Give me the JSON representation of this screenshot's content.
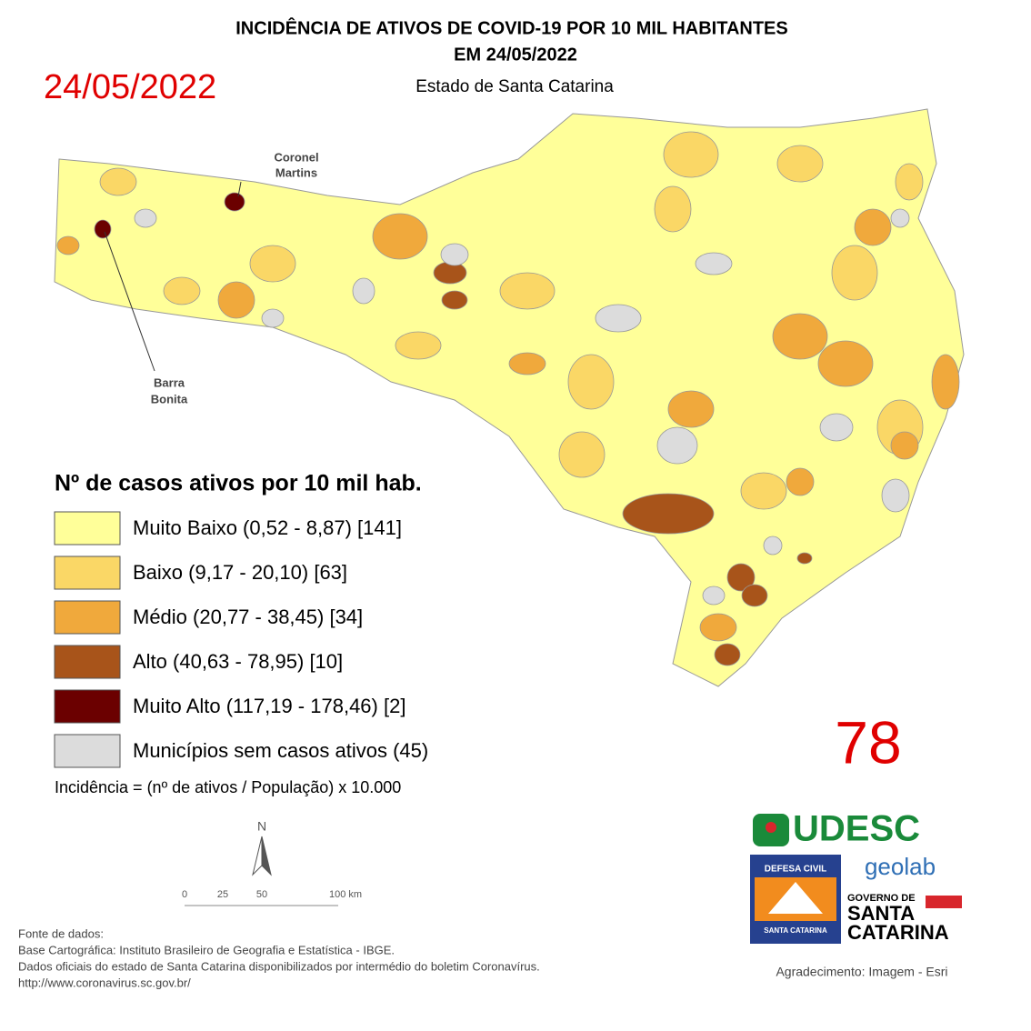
{
  "header": {
    "title_lines": [
      "INCIDÊNCIA DE ATIVOS DE COVID-19 POR 10 MIL HABITANTES",
      "EM 24/05/2022"
    ],
    "date_stamp": "24/05/2022",
    "subtitle": "Estado de Santa Catarina"
  },
  "map": {
    "annotations": [
      {
        "lines": [
          "Coronel",
          "Martins"
        ]
      },
      {
        "lines": [
          "Barra",
          "Bonita"
        ]
      }
    ]
  },
  "legend": {
    "title": "Nº de casos ativos por 10 mil hab.",
    "items": [
      {
        "label": "Muito Baixo (0,52 - 8,87) [141]",
        "color": "#ffff99"
      },
      {
        "label": "Baixo (9,17 - 20,10) [63]",
        "color": "#fad766"
      },
      {
        "label": "Médio (20,77 - 38,45) [34]",
        "color": "#f0a93c"
      },
      {
        "label": "Alto (40,63 - 78,95) [10]",
        "color": "#a8541a"
      },
      {
        "label": "Muito Alto (117,19 - 178,46) [2]",
        "color": "#6b0000"
      },
      {
        "label": "Municípios sem casos ativos (45)",
        "color": "#dcdcdc"
      }
    ],
    "formula": "Incidência = (nº de ativos / População) x 10.000"
  },
  "bulletin_number": "78",
  "north_arrow": "N",
  "scale_bar": {
    "labels": [
      "0",
      "25",
      "50",
      "100 km"
    ]
  },
  "sources": [
    "Fonte de dados:",
    "Base Cartográfica: Instituto Brasileiro de Geografia e Estatística - IBGE.",
    "Dados oficiais do estado de Santa Catarina disponibilizados por intermédio do boletim Coronavírus.",
    "http://www.coronavirus.sc.gov.br/"
  ],
  "logos": {
    "udesc": "UDESC",
    "defesa_civil": "DEFESA CIVIL",
    "defesa_civil_state": "SANTA CATARINA",
    "geolab": "geolab",
    "governo": "GOVERNO DE",
    "governo_state_lines": [
      "SANTA",
      "CATARINA"
    ]
  },
  "credit": "Agradecimento: Imagem - Esri"
}
